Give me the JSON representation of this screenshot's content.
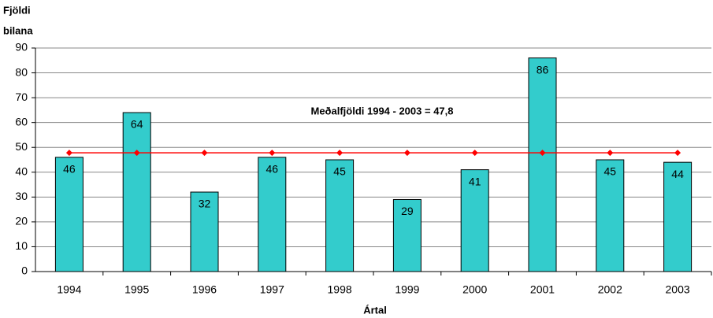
{
  "chart_data": {
    "type": "bar",
    "ylabel": [
      "Fjöldi",
      "bilana"
    ],
    "xlabel": "Ártal",
    "annotation": "Meðalfjöldi 1994 - 2003 = 47,8",
    "categories": [
      "1994",
      "1995",
      "1996",
      "1997",
      "1998",
      "1999",
      "2000",
      "2001",
      "2002",
      "2003"
    ],
    "series": [
      {
        "type": "bar",
        "color": "#33cccc",
        "values": [
          46,
          64,
          32,
          46,
          45,
          29,
          41,
          86,
          45,
          44
        ]
      },
      {
        "type": "line",
        "color": "#ff0000",
        "values": [
          47.8,
          47.8,
          47.8,
          47.8,
          47.8,
          47.8,
          47.8,
          47.8,
          47.8,
          47.8
        ]
      }
    ],
    "ylim": [
      0,
      90
    ],
    "yticks": [
      0,
      10,
      20,
      30,
      40,
      50,
      60,
      70,
      80,
      90
    ],
    "grid": true
  }
}
